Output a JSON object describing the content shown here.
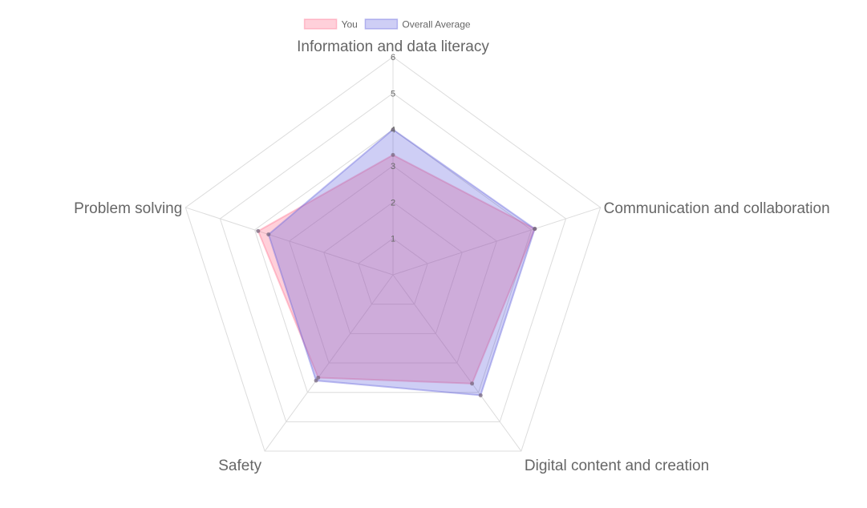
{
  "chart_data": {
    "type": "radar",
    "title": "",
    "categories": [
      "Information and data literacy",
      "Communication and collaboration",
      "Digital content and creation",
      "Safety",
      "Problem solving"
    ],
    "series": [
      {
        "name": "You",
        "values": [
          3.3,
          4.1,
          3.7,
          3.5,
          3.9
        ],
        "fill": "rgba(255, 99, 132, 0.3)",
        "stroke": "rgba(255, 99, 132, 0.35)"
      },
      {
        "name": "Overall Average",
        "values": [
          4.0,
          4.1,
          4.1,
          3.6,
          3.6
        ],
        "fill": "rgba(80, 80, 220, 0.28)",
        "stroke": "rgba(100, 100, 220, 0.4)"
      }
    ],
    "rlim": [
      0,
      6
    ],
    "ticks": [
      1,
      2,
      3,
      4,
      5,
      6
    ],
    "legend_position": "top",
    "colors": {
      "grid": "#dcdcdc",
      "text": "#666666",
      "point": "#7a6a80"
    }
  }
}
